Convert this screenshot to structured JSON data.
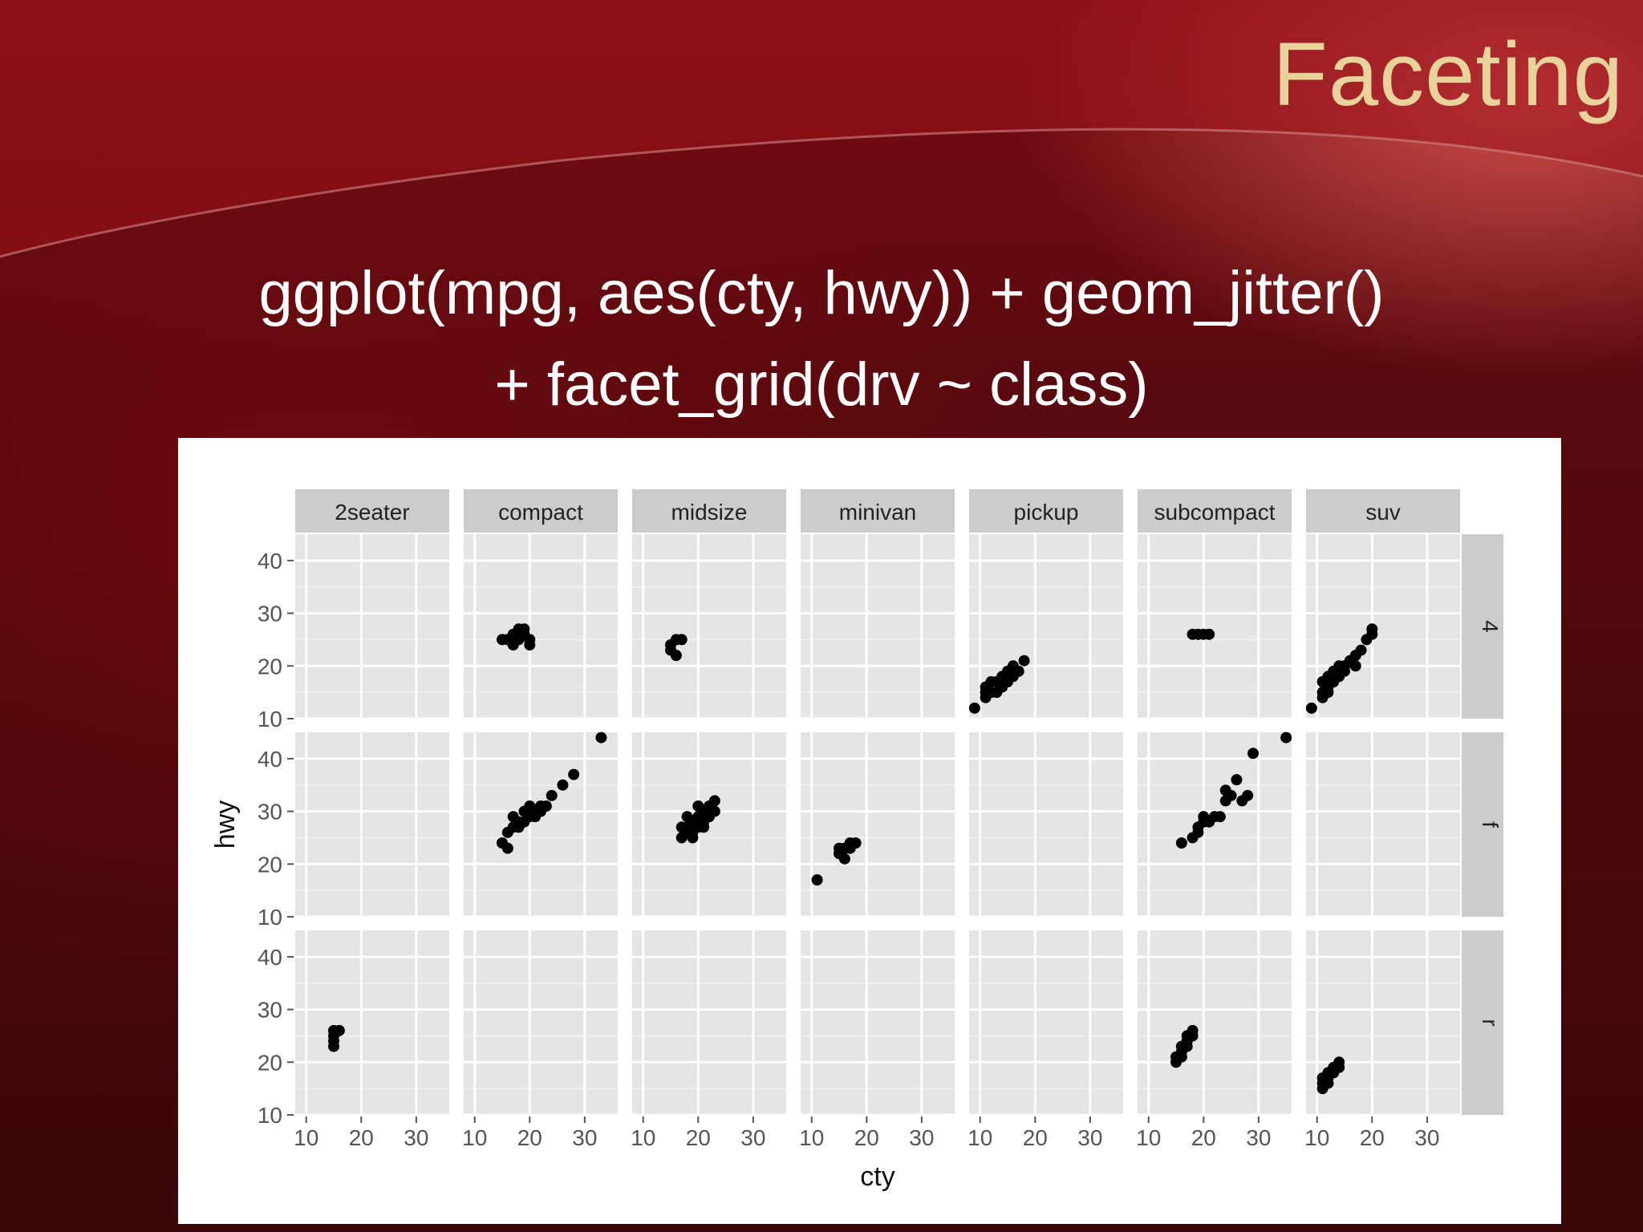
{
  "slide": {
    "title": "Faceting",
    "code_line_1": "ggplot(mpg, aes(cty, hwy)) + geom_jitter()",
    "code_line_2": "+ facet_grid(drv ~ class)"
  },
  "colors": {
    "title_text": "#e8d39a",
    "panel_background": "#e5e5e5",
    "strip_background": "#cccccc",
    "point": "#000000"
  },
  "chart_data": {
    "type": "scatter",
    "facet_columns": [
      "2seater",
      "compact",
      "midsize",
      "minivan",
      "pickup",
      "subcompact",
      "suv"
    ],
    "facet_rows": [
      "4",
      "f",
      "r"
    ],
    "xlabel": "cty",
    "ylabel": "hwy",
    "xlim": [
      8,
      36
    ],
    "ylim": [
      10,
      45
    ],
    "x_ticks": [
      10,
      20,
      30
    ],
    "y_ticks": [
      10,
      20,
      30,
      40
    ],
    "grid": true,
    "legend": "none",
    "panels": [
      {
        "row": "4",
        "col": "compact",
        "points": [
          [
            15,
            25
          ],
          [
            16,
            25
          ],
          [
            17,
            24
          ],
          [
            18,
            25
          ],
          [
            19,
            26
          ],
          [
            19,
            27
          ],
          [
            20,
            25
          ],
          [
            17,
            26
          ],
          [
            18,
            27
          ],
          [
            20,
            24
          ]
        ]
      },
      {
        "row": "4",
        "col": "midsize",
        "points": [
          [
            15,
            24
          ],
          [
            16,
            25
          ],
          [
            17,
            25
          ],
          [
            15,
            23
          ],
          [
            16,
            22
          ]
        ]
      },
      {
        "row": "4",
        "col": "pickup",
        "points": [
          [
            9,
            12
          ],
          [
            11,
            14
          ],
          [
            11,
            16
          ],
          [
            12,
            15
          ],
          [
            13,
            17
          ],
          [
            14,
            16
          ],
          [
            14,
            18
          ],
          [
            15,
            17
          ],
          [
            15,
            19
          ],
          [
            16,
            18
          ],
          [
            16,
            20
          ],
          [
            17,
            19
          ],
          [
            18,
            21
          ],
          [
            12,
            17
          ],
          [
            13,
            15
          ],
          [
            11,
            15
          ]
        ]
      },
      {
        "row": "4",
        "col": "subcompact",
        "points": [
          [
            18,
            26
          ],
          [
            19,
            26
          ],
          [
            20,
            26
          ],
          [
            21,
            26
          ]
        ]
      },
      {
        "row": "4",
        "col": "suv",
        "points": [
          [
            9,
            12
          ],
          [
            11,
            14
          ],
          [
            11,
            15
          ],
          [
            11,
            17
          ],
          [
            12,
            16
          ],
          [
            12,
            18
          ],
          [
            13,
            17
          ],
          [
            13,
            19
          ],
          [
            14,
            18
          ],
          [
            14,
            20
          ],
          [
            15,
            19
          ],
          [
            15,
            20
          ],
          [
            16,
            21
          ],
          [
            17,
            20
          ],
          [
            17,
            22
          ],
          [
            18,
            23
          ],
          [
            19,
            25
          ],
          [
            20,
            26
          ],
          [
            20,
            27
          ],
          [
            12,
            15
          ]
        ]
      },
      {
        "row": "f",
        "col": "compact",
        "points": [
          [
            33,
            44
          ],
          [
            28,
            37
          ],
          [
            26,
            35
          ],
          [
            24,
            33
          ],
          [
            22,
            31
          ],
          [
            21,
            30
          ],
          [
            20,
            29
          ],
          [
            19,
            30
          ],
          [
            18,
            28
          ],
          [
            17,
            27
          ],
          [
            17,
            29
          ],
          [
            16,
            26
          ],
          [
            15,
            24
          ],
          [
            16,
            23
          ],
          [
            18,
            27
          ],
          [
            19,
            28
          ],
          [
            20,
            31
          ],
          [
            21,
            29
          ],
          [
            22,
            30
          ],
          [
            23,
            31
          ]
        ]
      },
      {
        "row": "f",
        "col": "midsize",
        "points": [
          [
            17,
            25
          ],
          [
            18,
            26
          ],
          [
            18,
            27
          ],
          [
            19,
            28
          ],
          [
            19,
            26
          ],
          [
            20,
            29
          ],
          [
            20,
            27
          ],
          [
            21,
            30
          ],
          [
            21,
            28
          ],
          [
            22,
            31
          ],
          [
            22,
            29
          ],
          [
            23,
            30
          ],
          [
            23,
            32
          ],
          [
            19,
            25
          ],
          [
            18,
            29
          ],
          [
            17,
            27
          ],
          [
            20,
            31
          ],
          [
            21,
            27
          ]
        ]
      },
      {
        "row": "f",
        "col": "minivan",
        "points": [
          [
            11,
            17
          ],
          [
            15,
            22
          ],
          [
            16,
            23
          ],
          [
            17,
            24
          ],
          [
            18,
            24
          ],
          [
            15,
            23
          ],
          [
            16,
            21
          ],
          [
            17,
            23
          ]
        ]
      },
      {
        "row": "f",
        "col": "subcompact",
        "points": [
          [
            35,
            44
          ],
          [
            29,
            41
          ],
          [
            26,
            36
          ],
          [
            28,
            33
          ],
          [
            25,
            33
          ],
          [
            24,
            32
          ],
          [
            23,
            29
          ],
          [
            22,
            29
          ],
          [
            21,
            28
          ],
          [
            20,
            29
          ],
          [
            19,
            27
          ],
          [
            19,
            26
          ],
          [
            18,
            25
          ],
          [
            16,
            24
          ],
          [
            27,
            32
          ],
          [
            24,
            34
          ],
          [
            20,
            28
          ]
        ]
      },
      {
        "row": "r",
        "col": "2seater",
        "points": [
          [
            15,
            26
          ],
          [
            15,
            25
          ],
          [
            15,
            24
          ],
          [
            16,
            26
          ],
          [
            15,
            23
          ]
        ]
      },
      {
        "row": "r",
        "col": "subcompact",
        "points": [
          [
            15,
            21
          ],
          [
            16,
            22
          ],
          [
            16,
            23
          ],
          [
            17,
            24
          ],
          [
            17,
            25
          ],
          [
            18,
            26
          ],
          [
            15,
            20
          ],
          [
            17,
            23
          ],
          [
            18,
            25
          ],
          [
            16,
            21
          ]
        ]
      },
      {
        "row": "r",
        "col": "suv",
        "points": [
          [
            11,
            15
          ],
          [
            11,
            16
          ],
          [
            12,
            17
          ],
          [
            13,
            18
          ],
          [
            14,
            19
          ],
          [
            14,
            20
          ],
          [
            12,
            16
          ],
          [
            11,
            17
          ],
          [
            13,
            19
          ],
          [
            12,
            18
          ]
        ]
      }
    ]
  }
}
